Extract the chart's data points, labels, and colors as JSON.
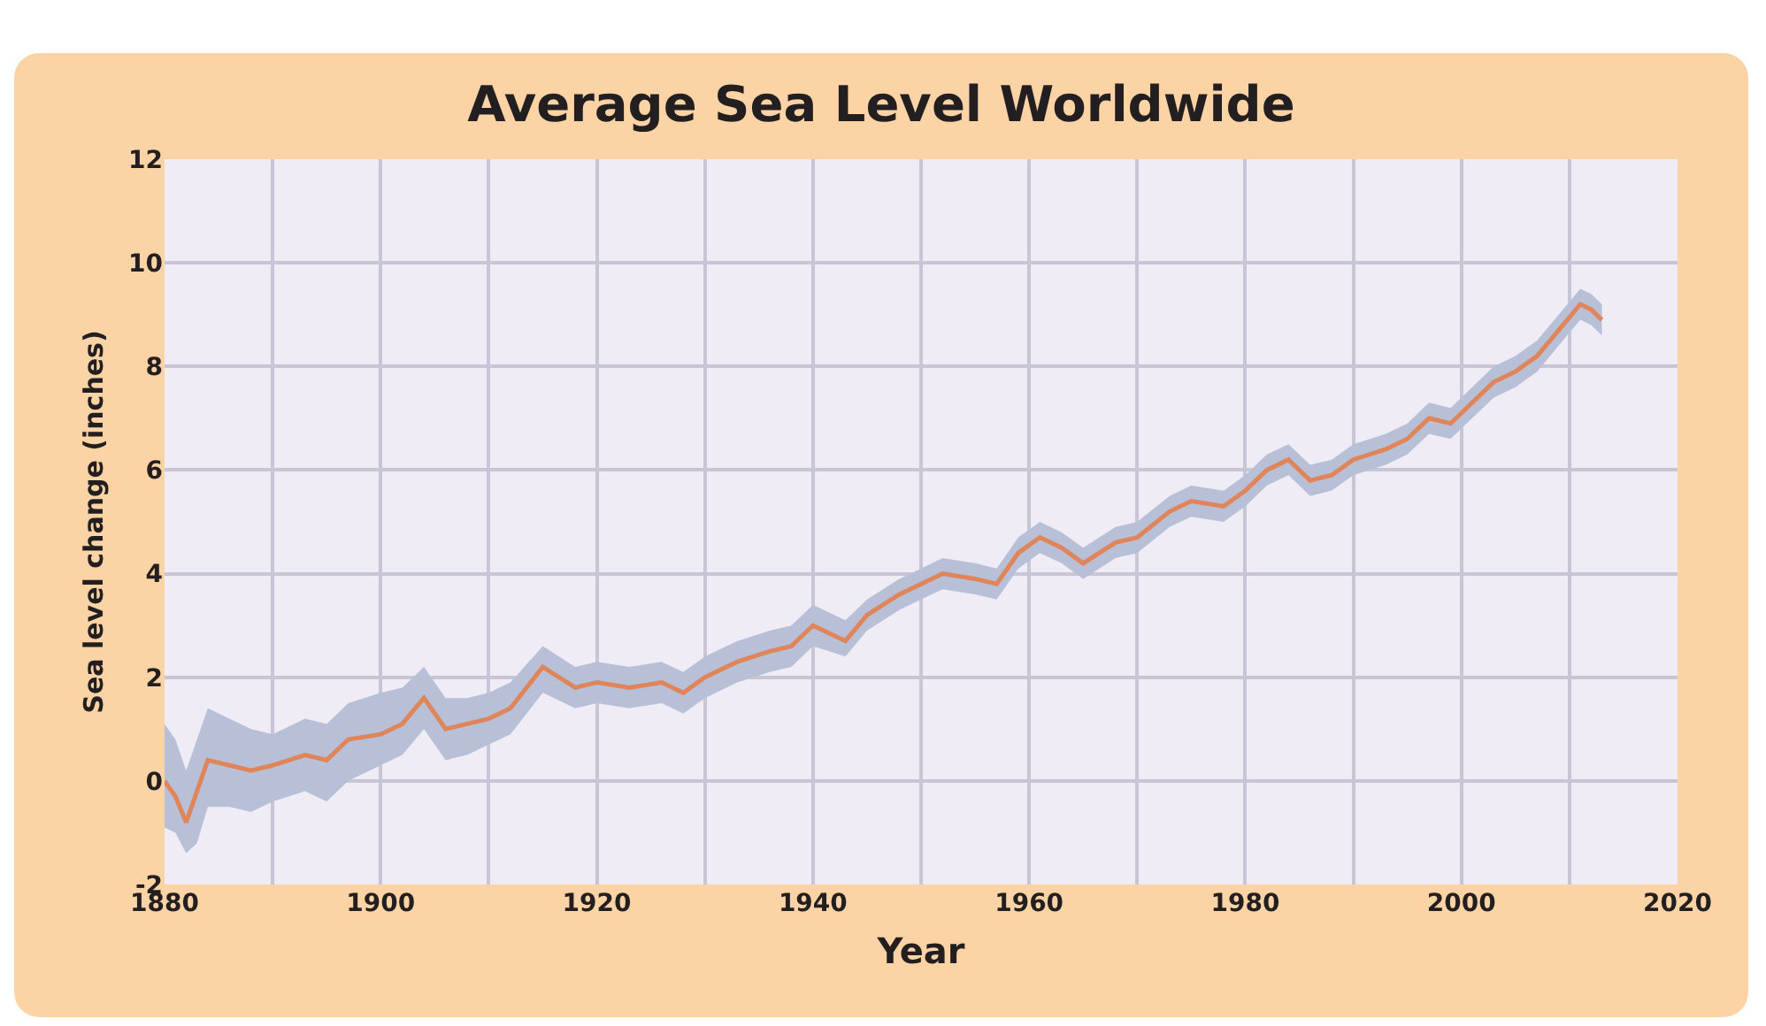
{
  "chart_data": {
    "type": "line",
    "title": "Average Sea Level Worldwide",
    "xlabel": "Year",
    "ylabel": "Sea level change (inches)",
    "x": [
      1880,
      1881,
      1882,
      1883,
      1884,
      1886,
      1888,
      1890,
      1893,
      1895,
      1897,
      1900,
      1902,
      1904,
      1906,
      1908,
      1910,
      1912,
      1915,
      1918,
      1920,
      1923,
      1926,
      1928,
      1930,
      1933,
      1936,
      1938,
      1940,
      1943,
      1945,
      1948,
      1950,
      1952,
      1955,
      1957,
      1959,
      1961,
      1963,
      1965,
      1968,
      1970,
      1973,
      1975,
      1978,
      1980,
      1982,
      1984,
      1986,
      1988,
      1990,
      1993,
      1995,
      1997,
      1999,
      2001,
      2003,
      2005,
      2007,
      2009,
      2011,
      2012,
      2013
    ],
    "series": [
      {
        "color": "#e0845a",
        "values": [
          0,
          -0.3,
          -0.8,
          -0.2,
          0.4,
          0.3,
          0.2,
          0.3,
          0.5,
          0.4,
          0.8,
          0.9,
          1.1,
          1.6,
          1.0,
          1.1,
          1.2,
          1.4,
          2.2,
          1.8,
          1.9,
          1.8,
          1.9,
          1.7,
          2.0,
          2.3,
          2.5,
          2.6,
          3.0,
          2.7,
          3.2,
          3.6,
          3.8,
          4.0,
          3.9,
          3.8,
          4.4,
          4.7,
          4.5,
          4.2,
          4.6,
          4.7,
          5.2,
          5.4,
          5.3,
          5.6,
          6.0,
          6.2,
          5.8,
          5.9,
          6.2,
          6.4,
          6.6,
          7.0,
          6.9,
          7.3,
          7.7,
          7.9,
          8.2,
          8.7,
          9.2,
          9.1,
          8.9
        ],
        "lower": [
          -0.9,
          -1.0,
          -1.4,
          -1.2,
          -0.5,
          -0.5,
          -0.6,
          -0.4,
          -0.2,
          -0.4,
          0.0,
          0.3,
          0.5,
          1.0,
          0.4,
          0.5,
          0.7,
          0.9,
          1.7,
          1.4,
          1.5,
          1.4,
          1.5,
          1.3,
          1.6,
          1.9,
          2.1,
          2.2,
          2.6,
          2.4,
          2.9,
          3.3,
          3.5,
          3.7,
          3.6,
          3.5,
          4.1,
          4.4,
          4.2,
          3.9,
          4.3,
          4.4,
          4.9,
          5.1,
          5.0,
          5.3,
          5.7,
          5.9,
          5.5,
          5.6,
          5.9,
          6.1,
          6.3,
          6.7,
          6.6,
          7.0,
          7.4,
          7.6,
          7.9,
          8.4,
          8.9,
          8.8,
          8.6
        ],
        "upper": [
          1.1,
          0.8,
          0.2,
          0.8,
          1.4,
          1.2,
          1.0,
          0.9,
          1.2,
          1.1,
          1.5,
          1.7,
          1.8,
          2.2,
          1.6,
          1.6,
          1.7,
          1.9,
          2.6,
          2.2,
          2.3,
          2.2,
          2.3,
          2.1,
          2.4,
          2.7,
          2.9,
          3.0,
          3.4,
          3.1,
          3.5,
          3.9,
          4.1,
          4.3,
          4.2,
          4.1,
          4.7,
          5.0,
          4.8,
          4.5,
          4.9,
          5.0,
          5.5,
          5.7,
          5.6,
          5.9,
          6.3,
          6.5,
          6.1,
          6.2,
          6.5,
          6.7,
          6.9,
          7.3,
          7.2,
          7.6,
          8.0,
          8.2,
          8.5,
          9.0,
          9.5,
          9.4,
          9.2
        ]
      }
    ],
    "xlim": [
      1880,
      2020
    ],
    "xticks": [
      1880,
      {
        "value": 1890,
        "label": null
      },
      1900,
      {
        "value": 1910,
        "label": null
      },
      1920,
      {
        "value": 1930,
        "label": null
      },
      1940,
      {
        "value": 1950,
        "label": null
      },
      1960,
      {
        "value": 1970,
        "label": null
      },
      1980,
      {
        "value": 1990,
        "label": null
      },
      2000,
      {
        "value": 2010,
        "label": null
      },
      2020
    ],
    "ylim": [
      -2,
      12
    ],
    "yticks": [
      -2,
      0,
      2,
      4,
      6,
      8,
      10,
      12
    ],
    "grid": true,
    "marker": "none",
    "line_style": "solid"
  }
}
